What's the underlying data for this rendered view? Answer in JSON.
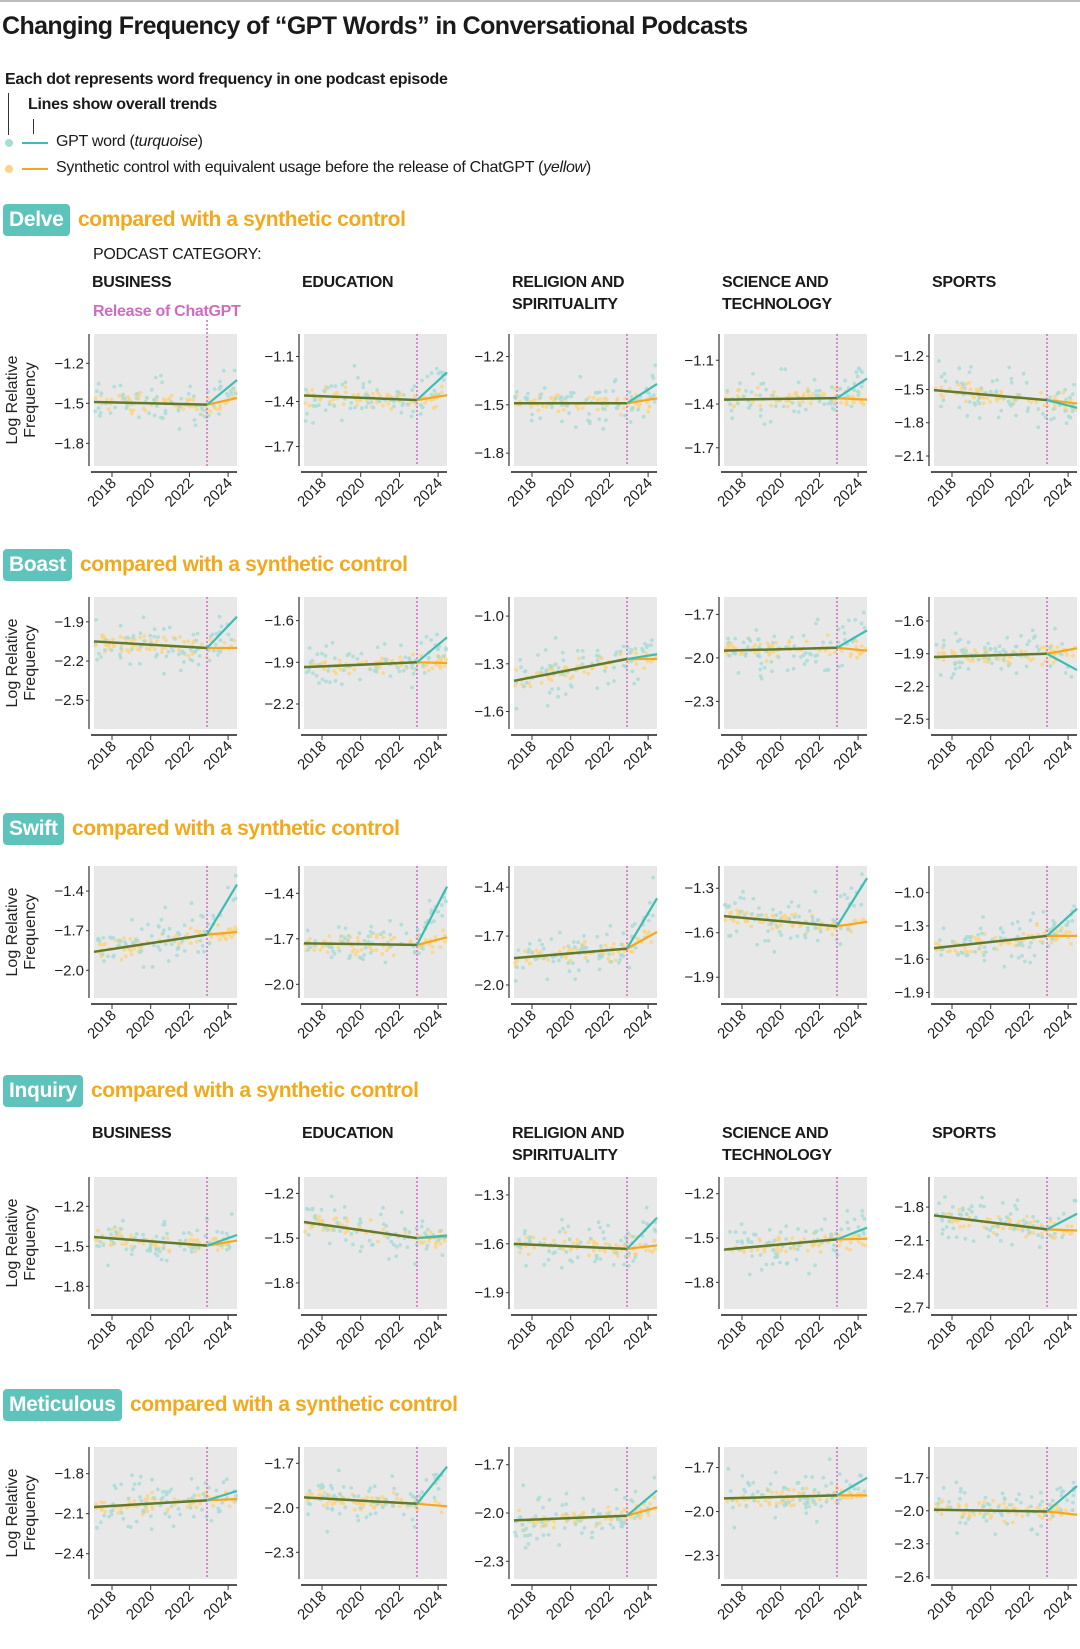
{
  "title": "Changing Frequency of “GPT Words” in Conversational Podcasts",
  "notes": {
    "dots": "Each dot represents word frequency in one podcast episode",
    "lines": "Lines show overall trends"
  },
  "legend": {
    "gpt": {
      "text": "GPT word (",
      "italic": "turquoise",
      "close": ")"
    },
    "control": {
      "text": "Synthetic control with equivalent usage before the release of ChatGPT (",
      "italic": "yellow",
      "close": ")"
    }
  },
  "comparison_suffix": "compared with a synthetic control",
  "podcast_category_label": "PODCAST CATEGORY:",
  "release_label": "Release of ChatGPT",
  "categories": [
    [
      "BUSINESS"
    ],
    [
      "EDUCATION"
    ],
    [
      "RELIGION AND",
      "SPIRITUALITY"
    ],
    [
      "SCIENCE AND",
      "TECHNOLOGY"
    ],
    [
      "SPORTS"
    ]
  ],
  "colors": {
    "gpt": "#3dbdb1",
    "control": "#f5a81c",
    "overlap": "#627a2c",
    "release": "#d06cc0",
    "panel_bg": "#e8e8e9",
    "badge": "#5ec4bb"
  },
  "chart_data": {
    "type": "scatter",
    "ylabel": [
      "Log Relative",
      "Frequency"
    ],
    "x_ticks": [
      2018,
      2020,
      2022,
      2024
    ],
    "xlim": [
      2017.07,
      2024.46
    ],
    "release_x": 2022.91,
    "words": [
      {
        "word": "Delve",
        "panels": [
          {
            "yticks": [
              -1.2,
              -1.5,
              -1.8
            ],
            "ylim": [
              -1.97,
              -0.98
            ],
            "trend": {
              "start": -1.49,
              "release": -1.51,
              "gpt_end": -1.325,
              "control_end": -1.46
            }
          },
          {
            "yticks": [
              -1.1,
              -1.4,
              -1.7
            ],
            "ylim": [
              -1.83,
              -0.95
            ],
            "trend": {
              "start": -1.36,
              "release": -1.39,
              "gpt_end": -1.206,
              "control_end": -1.358
            }
          },
          {
            "yticks": [
              -1.2,
              -1.5,
              -1.8
            ],
            "ylim": [
              -1.88,
              -1.06
            ],
            "trend": {
              "start": -1.49,
              "release": -1.49,
              "gpt_end": -1.37,
              "control_end": -1.46
            }
          },
          {
            "yticks": [
              -1.1,
              -1.4,
              -1.7
            ],
            "ylim": [
              -1.825,
              -0.92
            ],
            "trend": {
              "start": -1.37,
              "release": -1.36,
              "gpt_end": -1.225,
              "control_end": -1.37
            }
          },
          {
            "yticks": [
              -1.2,
              -1.5,
              -1.8,
              -2.1
            ],
            "ylim": [
              -2.19,
              -1.0
            ],
            "trend": {
              "start": -1.506,
              "release": -1.596,
              "gpt_end": -1.665,
              "control_end": -1.626
            }
          }
        ]
      },
      {
        "word": "Boast",
        "panels": [
          {
            "yticks": [
              -1.9,
              -2.2,
              -2.5
            ],
            "ylim": [
              -2.72,
              -1.71
            ],
            "trend": {
              "start": -2.05,
              "release": -2.1,
              "gpt_end": -1.86,
              "control_end": -2.1
            }
          },
          {
            "yticks": [
              -1.6,
              -1.9,
              -2.2
            ],
            "ylim": [
              -2.38,
              -1.43
            ],
            "trend": {
              "start": -1.935,
              "release": -1.9,
              "gpt_end": -1.72,
              "control_end": -1.905
            }
          },
          {
            "yticks": [
              -1.0,
              -1.3,
              -1.6
            ],
            "ylim": [
              -1.71,
              -0.88
            ],
            "trend": {
              "start": -1.407,
              "release": -1.27,
              "gpt_end": -1.24,
              "control_end": -1.27
            }
          },
          {
            "yticks": [
              -1.7,
              -2.0,
              -2.3
            ],
            "ylim": [
              -2.49,
              -1.58
            ],
            "trend": {
              "start": -1.95,
              "release": -1.93,
              "gpt_end": -1.81,
              "control_end": -1.95
            }
          },
          {
            "yticks": [
              -1.6,
              -1.9,
              -2.2,
              -2.5
            ],
            "ylim": [
              -2.59,
              -1.38
            ],
            "trend": {
              "start": -1.93,
              "release": -1.9,
              "gpt_end": -2.05,
              "control_end": -1.85
            }
          }
        ]
      },
      {
        "word": "Swift",
        "panels": [
          {
            "yticks": [
              -1.4,
              -1.7,
              -2.0
            ],
            "ylim": [
              -2.21,
              -1.21
            ],
            "trend": {
              "start": -1.86,
              "release": -1.73,
              "gpt_end": -1.35,
              "control_end": -1.71
            }
          },
          {
            "yticks": [
              -1.4,
              -1.7,
              -2.0
            ],
            "ylim": [
              -2.09,
              -1.22
            ],
            "trend": {
              "start": -1.73,
              "release": -1.74,
              "gpt_end": -1.356,
              "control_end": -1.69
            }
          },
          {
            "yticks": [
              -1.4,
              -1.7,
              -2.0
            ],
            "ylim": [
              -2.08,
              -1.27
            ],
            "trend": {
              "start": -1.835,
              "release": -1.777,
              "gpt_end": -1.468,
              "control_end": -1.675
            }
          },
          {
            "yticks": [
              -1.3,
              -1.6,
              -1.9
            ],
            "ylim": [
              -2.04,
              -1.15
            ],
            "trend": {
              "start": -1.488,
              "release": -1.556,
              "gpt_end": -1.232,
              "control_end": -1.527
            }
          },
          {
            "yticks": [
              -1.0,
              -1.3,
              -1.6,
              -1.9
            ],
            "ylim": [
              -1.95,
              -0.76
            ],
            "trend": {
              "start": -1.5,
              "release": -1.39,
              "gpt_end": -1.145,
              "control_end": -1.39
            }
          }
        ]
      },
      {
        "word": "Inquiry",
        "panels": [
          {
            "yticks": [
              -1.2,
              -1.5,
              -1.8
            ],
            "ylim": [
              -1.97,
              -0.98
            ],
            "trend": {
              "start": -1.43,
              "release": -1.495,
              "gpt_end": -1.415,
              "control_end": -1.457
            }
          },
          {
            "yticks": [
              -1.2,
              -1.5,
              -1.8
            ],
            "ylim": [
              -1.975,
              -1.09
            ],
            "trend": {
              "start": -1.392,
              "release": -1.5,
              "gpt_end": -1.482,
              "control_end": -1.489
            }
          },
          {
            "yticks": [
              -1.3,
              -1.6,
              -1.9
            ],
            "ylim": [
              -2.0,
              -1.19
            ],
            "trend": {
              "start": -1.6,
              "release": -1.631,
              "gpt_end": -1.44,
              "control_end": -1.61
            }
          },
          {
            "yticks": [
              -1.2,
              -1.5,
              -1.8
            ],
            "ylim": [
              -1.98,
              -1.087
            ],
            "trend": {
              "start": -1.578,
              "release": -1.509,
              "gpt_end": -1.43,
              "control_end": -1.505
            }
          },
          {
            "yticks": [
              -1.8,
              -2.1,
              -2.4,
              -2.7
            ],
            "ylim": [
              -2.715,
              -1.53
            ],
            "trend": {
              "start": -1.875,
              "release": -2.0,
              "gpt_end": -1.86,
              "control_end": -2.01
            }
          }
        ]
      },
      {
        "word": "Meticulous",
        "panels": [
          {
            "yticks": [
              -1.8,
              -2.1,
              -2.4
            ],
            "ylim": [
              -2.59,
              -1.6
            ],
            "trend": {
              "start": -2.05,
              "release": -2.0,
              "gpt_end": -1.93,
              "control_end": -1.99
            }
          },
          {
            "yticks": [
              -1.7,
              -2.0,
              -2.3
            ],
            "ylim": [
              -2.48,
              -1.59
            ],
            "trend": {
              "start": -1.93,
              "release": -1.973,
              "gpt_end": -1.723,
              "control_end": -1.99
            }
          },
          {
            "yticks": [
              -1.7,
              -2.0,
              -2.3
            ],
            "ylim": [
              -2.41,
              -1.59
            ],
            "trend": {
              "start": -2.046,
              "release": -2.017,
              "gpt_end": -1.86,
              "control_end": -1.965
            }
          },
          {
            "yticks": [
              -1.7,
              -2.0,
              -2.3
            ],
            "ylim": [
              -2.46,
              -1.56
            ],
            "trend": {
              "start": -1.91,
              "release": -1.89,
              "gpt_end": -1.77,
              "control_end": -1.89
            }
          },
          {
            "yticks": [
              -1.7,
              -2.0,
              -2.3,
              -2.6
            ],
            "ylim": [
              -2.62,
              -1.42
            ],
            "trend": {
              "start": -1.99,
              "release": -2.006,
              "gpt_end": -1.775,
              "control_end": -2.036
            }
          }
        ]
      }
    ]
  }
}
